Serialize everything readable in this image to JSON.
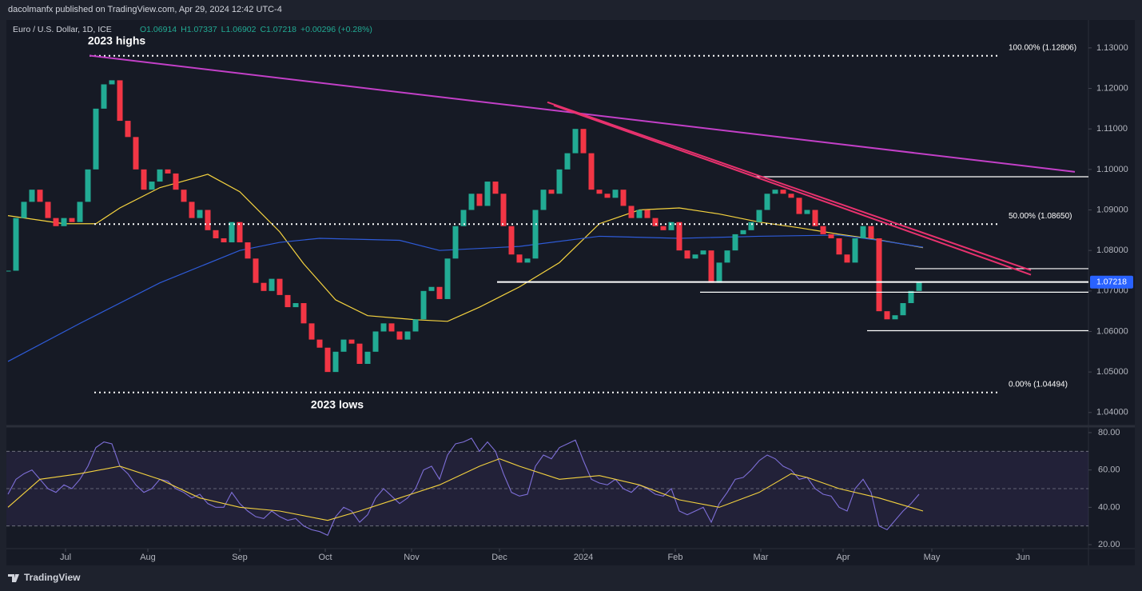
{
  "header": {
    "publisher": "dacolmanfx published on TradingView.com, Apr 29, 2024 12:42 UTC-4"
  },
  "footer": {
    "brand": "TradingView"
  },
  "chart_data": [
    {
      "type": "candlestick",
      "title": "Euro / U.S. Dollar, 1D, ICE",
      "ohlc": [
        "O1.06914",
        "H1.07337",
        "L1.06902",
        "C1.07218",
        "+0.00296 (+0.28%)"
      ],
      "up_color": "#22ab94",
      "down_color": "#f23645",
      "closes": [
        1.075,
        1.088,
        1.092,
        1.095,
        1.092,
        1.088,
        1.086,
        1.088,
        1.087,
        1.092,
        1.1,
        1.115,
        1.121,
        1.122,
        1.112,
        1.108,
        1.1,
        1.095,
        1.097,
        1.1,
        1.099,
        1.095,
        1.092,
        1.088,
        1.09,
        1.085,
        1.083,
        1.082,
        1.087,
        1.082,
        1.078,
        1.072,
        1.07,
        1.073,
        1.069,
        1.066,
        1.067,
        1.062,
        1.058,
        1.056,
        1.05,
        1.055,
        1.058,
        1.057,
        1.052,
        1.055,
        1.06,
        1.062,
        1.06,
        1.058,
        1.06,
        1.063,
        1.07,
        1.071,
        1.068,
        1.078,
        1.086,
        1.09,
        1.094,
        1.091,
        1.097,
        1.094,
        1.086,
        1.079,
        1.077,
        1.078,
        1.09,
        1.095,
        1.094,
        1.1,
        1.104,
        1.11,
        1.104,
        1.095,
        1.094,
        1.093,
        1.095,
        1.091,
        1.088,
        1.09,
        1.088,
        1.086,
        1.085,
        1.087,
        1.08,
        1.078,
        1.079,
        1.08,
        1.072,
        1.077,
        1.08,
        1.084,
        1.085,
        1.087,
        1.09,
        1.094,
        1.095,
        1.094,
        1.093,
        1.089,
        1.09,
        1.086,
        1.084,
        1.083,
        1.079,
        1.077,
        1.083,
        1.086,
        1.083,
        1.065,
        1.063,
        1.064,
        1.067,
        1.07,
        1.07218
      ],
      "series": [
        {
          "color": "#f5d33f",
          "x": [
            0,
            7,
            11,
            14,
            19,
            25,
            29,
            34,
            37,
            41,
            45,
            51,
            55,
            59,
            64,
            69,
            74,
            79,
            84,
            89,
            94,
            99,
            104,
            109,
            114.5
          ],
          "values": [
            1.0886,
            1.0866,
            1.0866,
            1.0905,
            1.0955,
            1.0988,
            1.0945,
            1.0846,
            1.0767,
            1.0678,
            1.0639,
            1.0629,
            1.0625,
            1.066,
            1.071,
            1.077,
            1.0866,
            1.09,
            1.0905,
            1.089,
            1.087,
            1.0856,
            1.084,
            1.0826,
            1.0807
          ]
        },
        {
          "color": "#2e5bd8",
          "x": [
            0,
            9,
            19,
            29,
            34,
            39,
            49,
            54,
            64,
            74,
            84,
            94,
            104,
            109,
            114.5
          ],
          "values": [
            1.0526,
            1.062,
            1.072,
            1.08,
            1.082,
            1.083,
            1.0825,
            1.08,
            1.081,
            1.0835,
            1.083,
            1.0835,
            1.0838,
            1.0825,
            1.0808
          ]
        }
      ],
      "trendlines": [
        {
          "color": "#c340c8",
          "x": [
            10.2,
            133.5
          ],
          "values": [
            1.1281,
            1.0994
          ]
        },
        {
          "color": "#e8326e",
          "x": [
            67.5,
            128
          ],
          "values": [
            1.1166,
            1.0751
          ]
        },
        {
          "color": "#e8326e",
          "x": [
            68.3,
            128
          ],
          "values": [
            1.1158,
            1.074
          ]
        }
      ],
      "fib_levels": [
        {
          "label": "100.00% (1.12806)",
          "value": 1.12806,
          "x": [
            10.2,
            124.2
          ]
        },
        {
          "label": "50.00% (1.08650)",
          "value": 1.0865,
          "x": [
            10.8,
            124.2
          ]
        },
        {
          "label": "0.00% (1.04494)",
          "value": 1.04494,
          "x": [
            10.8,
            124.2
          ]
        }
      ],
      "levels": [
        {
          "value": 1.0982,
          "x": [
            93.5,
            135
          ]
        },
        {
          "value": 1.0755,
          "x": [
            113.5,
            135
          ]
        },
        {
          "value": 1.0722,
          "x": [
            61.2,
            135
          ]
        },
        {
          "value": 1.0697,
          "x": [
            86.6,
            135
          ]
        },
        {
          "value": 1.0602,
          "x": [
            107.5,
            135
          ]
        }
      ],
      "last_price": 1.07218,
      "annotations": [
        {
          "text": "2023 highs",
          "x": 13.6,
          "value": 1.1316
        },
        {
          "text": "2023 lows",
          "x": 41.2,
          "value": 1.0418
        }
      ],
      "xlim": [
        0,
        135
      ],
      "xticks": [
        {
          "value": 7.2,
          "label": "Jul"
        },
        {
          "value": 17.5,
          "label": "Aug"
        },
        {
          "value": 29,
          "label": "Sep"
        },
        {
          "value": 39.7,
          "label": "Oct"
        },
        {
          "value": 50.5,
          "label": "Nov"
        },
        {
          "value": 61.5,
          "label": "Dec"
        },
        {
          "value": 72,
          "label": "2024"
        },
        {
          "value": 83.5,
          "label": "Feb"
        },
        {
          "value": 94.2,
          "label": "Mar"
        },
        {
          "value": 104.5,
          "label": "Apr"
        },
        {
          "value": 115.6,
          "label": "May"
        },
        {
          "value": 127,
          "label": "Jun"
        }
      ],
      "ylim": [
        1.0368,
        1.1359
      ],
      "yticks": [
        {
          "value": 1.04,
          "label": "1.04000"
        },
        {
          "value": 1.05,
          "label": "1.05000"
        },
        {
          "value": 1.06,
          "label": "1.06000"
        },
        {
          "value": 1.07,
          "label": "1.07000"
        },
        {
          "value": 1.08,
          "label": "1.08000"
        },
        {
          "value": 1.09,
          "label": "1.09000"
        },
        {
          "value": 1.1,
          "label": "1.10000"
        },
        {
          "value": 1.11,
          "label": "1.11000"
        },
        {
          "value": 1.12,
          "label": "1.12000"
        },
        {
          "value": 1.13,
          "label": "1.13000"
        }
      ]
    },
    {
      "type": "line",
      "series": [
        {
          "color": "#7e6fd8",
          "values": [
            47,
            55,
            58,
            60,
            55,
            50,
            48,
            52,
            50,
            55,
            62,
            72,
            75,
            74,
            62,
            58,
            52,
            48,
            50,
            55,
            54,
            50,
            48,
            45,
            47,
            42,
            40,
            40,
            48,
            42,
            38,
            35,
            34,
            38,
            35,
            33,
            34,
            30,
            28,
            27,
            25,
            35,
            40,
            38,
            32,
            36,
            45,
            50,
            46,
            42,
            45,
            50,
            60,
            62,
            55,
            68,
            74,
            75,
            77,
            70,
            75,
            70,
            58,
            48,
            46,
            47,
            62,
            68,
            66,
            72,
            74,
            76,
            65,
            55,
            53,
            52,
            55,
            50,
            48,
            52,
            50,
            47,
            46,
            50,
            38,
            36,
            38,
            40,
            32,
            42,
            48,
            55,
            56,
            60,
            65,
            68,
            66,
            62,
            60,
            55,
            56,
            50,
            47,
            46,
            40,
            38,
            50,
            55,
            48,
            30,
            28,
            33,
            38,
            42,
            47
          ]
        },
        {
          "color": "#f5d33f",
          "x": [
            0,
            4,
            9,
            14,
            19,
            24,
            29,
            34,
            40,
            44,
            49,
            54,
            59,
            61.5,
            64,
            69,
            74,
            79,
            84,
            89,
            94,
            98,
            100,
            104,
            109,
            114.5
          ],
          "values": [
            40,
            55,
            58,
            62,
            55,
            45,
            40,
            38,
            33,
            38,
            45,
            52,
            62,
            66,
            62,
            55,
            57,
            52,
            44,
            40,
            48,
            58,
            56,
            50,
            45,
            38
          ]
        }
      ],
      "bands": [
        70,
        50,
        30
      ],
      "xlim": [
        0,
        135
      ],
      "ylim": [
        18.3,
        81.7
      ],
      "yticks": [
        {
          "value": 80,
          "label": "80.00"
        },
        {
          "value": 60,
          "label": "60.00"
        },
        {
          "value": 40,
          "label": "40.00"
        },
        {
          "value": 20,
          "label": "20.00"
        }
      ]
    }
  ]
}
